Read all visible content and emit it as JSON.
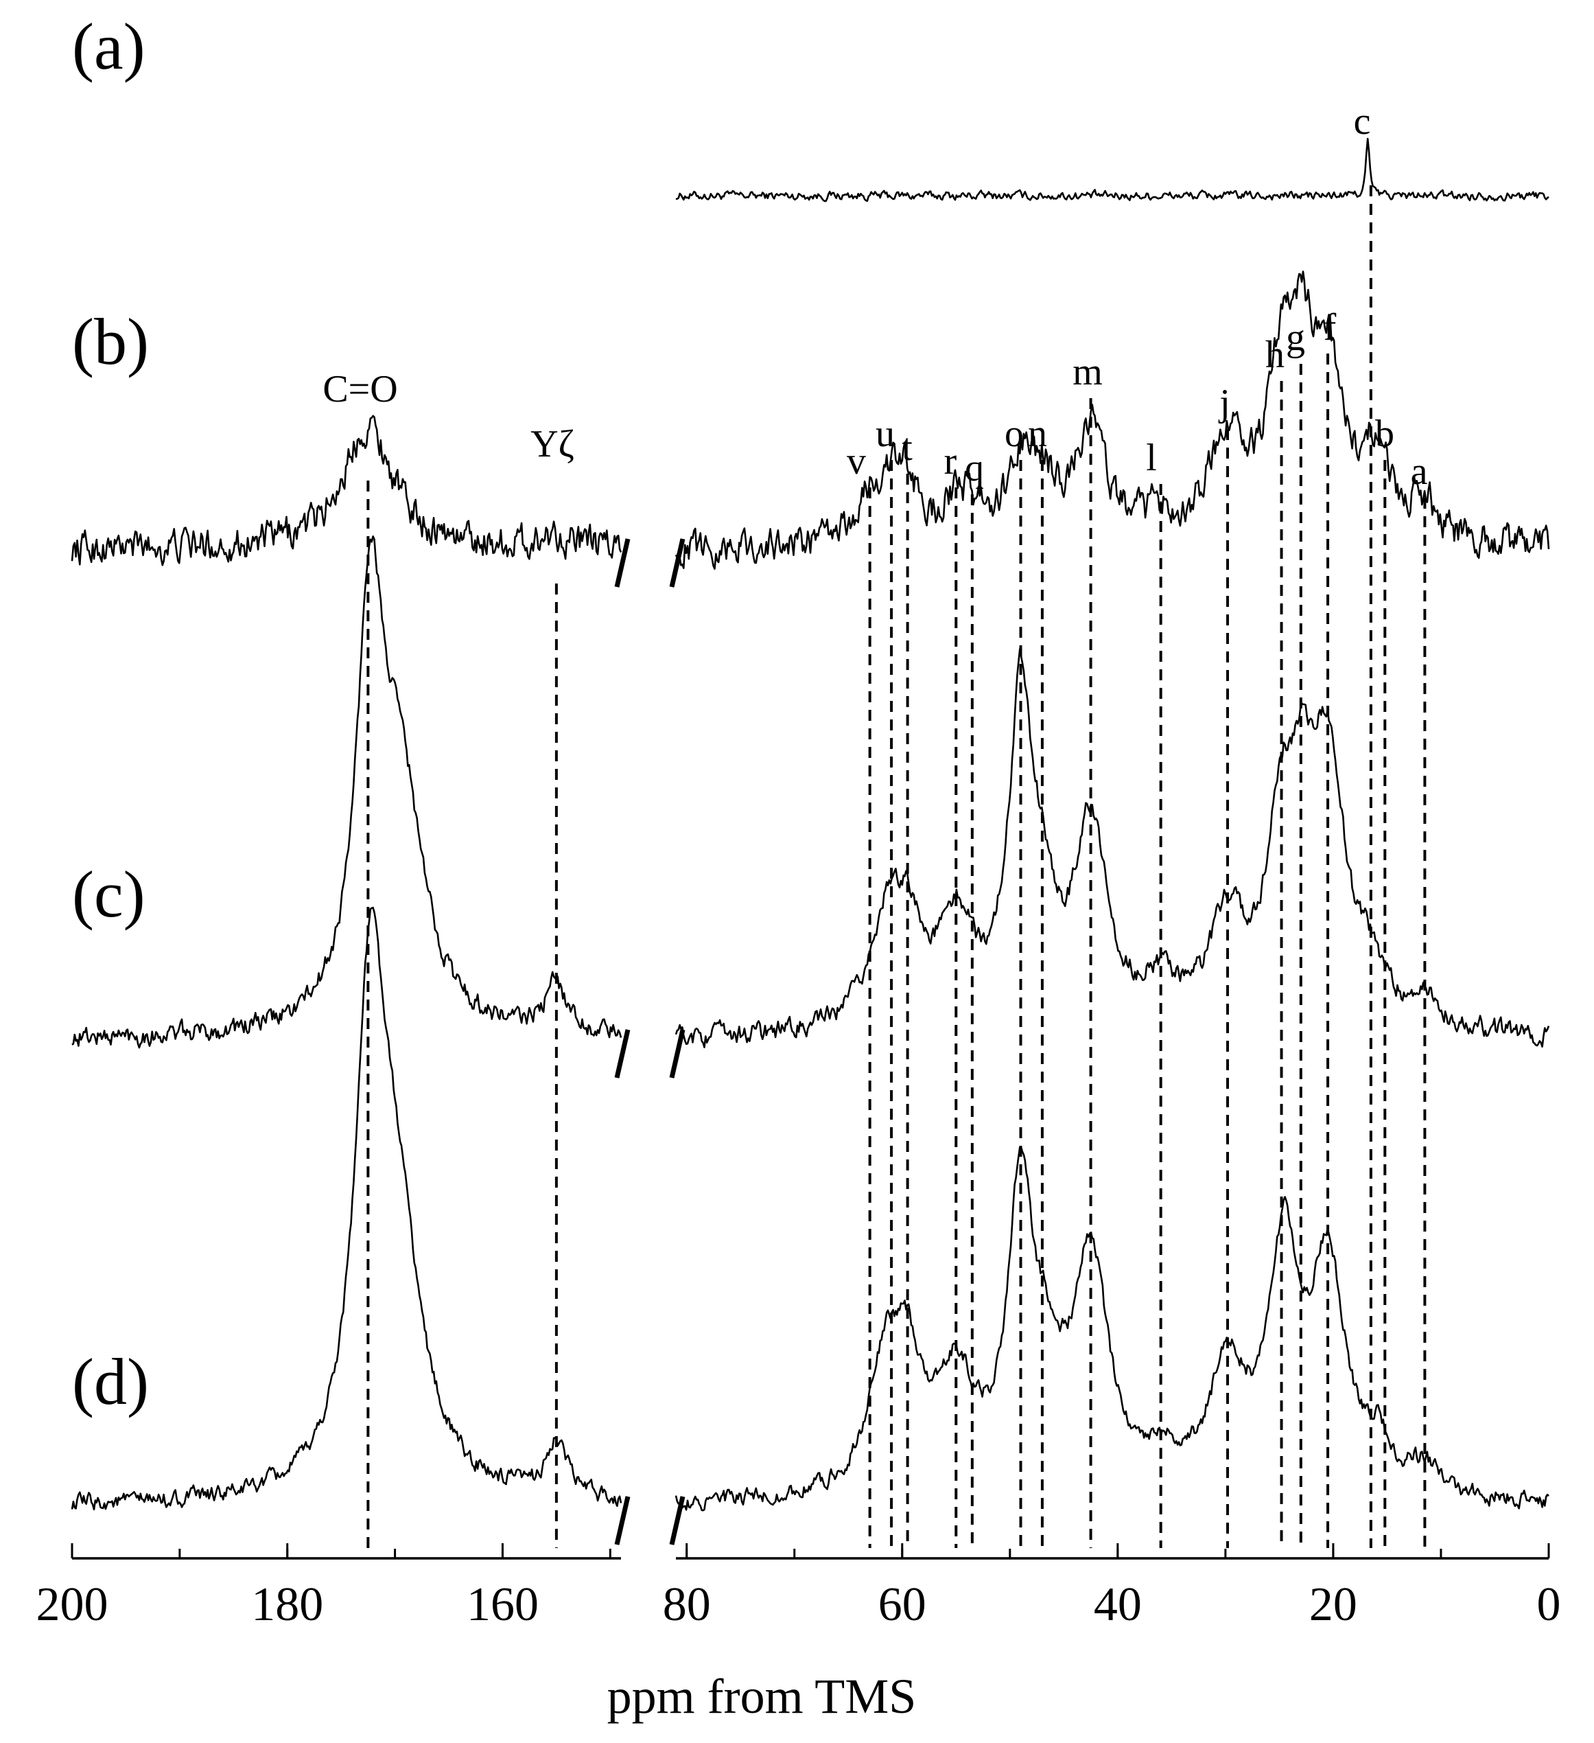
{
  "chart_data": {
    "type": "line",
    "title": "",
    "xlabel": "ppm from TMS",
    "ylabel": "",
    "x_reversed": true,
    "broken_axis": {
      "left_segment": [
        200,
        149
      ],
      "right_segment": [
        81,
        0
      ]
    },
    "xticks_left": [
      {
        "value": 200,
        "label": "200"
      },
      {
        "value": 180,
        "label": "180"
      },
      {
        "value": 160,
        "label": "160"
      }
    ],
    "xticks_right": [
      {
        "value": 80,
        "label": "80"
      },
      {
        "value": 60,
        "label": "60"
      },
      {
        "value": 40,
        "label": "40"
      },
      {
        "value": 20,
        "label": "20"
      },
      {
        "value": 0,
        "label": "0"
      }
    ],
    "grid": false,
    "legend": "none",
    "series": [
      {
        "label": "(a)",
        "range": [
          81,
          0
        ],
        "noise": 0.02,
        "peaks": [
          {
            "ppm": 16.8,
            "h": 0.35,
            "w": 0.2
          }
        ]
      },
      {
        "label": "(b)",
        "range": [
          200,
          0
        ],
        "noise": 0.055,
        "peaks": [
          {
            "ppm": 172.5,
            "h": 0.55,
            "w": 2.8
          },
          {
            "ppm": 155,
            "h": 0.06,
            "w": 1.5
          },
          {
            "ppm": 63,
            "h": 0.15,
            "w": 1.6
          },
          {
            "ppm": 61,
            "h": 0.22,
            "w": 1.6
          },
          {
            "ppm": 59.5,
            "h": 0.18,
            "w": 1.4
          },
          {
            "ppm": 55,
            "h": 0.14,
            "w": 1.6
          },
          {
            "ppm": 53.5,
            "h": 0.1,
            "w": 1.4
          },
          {
            "ppm": 49,
            "h": 0.3,
            "w": 1.5
          },
          {
            "ppm": 47,
            "h": 0.22,
            "w": 1.5
          },
          {
            "ppm": 42.5,
            "h": 0.5,
            "w": 1.8
          },
          {
            "ppm": 36,
            "h": 0.1,
            "w": 1.5
          },
          {
            "ppm": 29.8,
            "h": 0.45,
            "w": 2.0
          },
          {
            "ppm": 24.8,
            "h": 0.6,
            "w": 1.6
          },
          {
            "ppm": 23,
            "h": 0.62,
            "w": 1.4
          },
          {
            "ppm": 20.5,
            "h": 0.72,
            "w": 1.8
          },
          {
            "ppm": 16.5,
            "h": 0.22,
            "w": 1.2
          },
          {
            "ppm": 15.2,
            "h": 0.2,
            "w": 1.2
          },
          {
            "ppm": 11.5,
            "h": 0.15,
            "w": 1.6
          }
        ]
      },
      {
        "label": "(c)",
        "range": [
          200,
          0
        ],
        "noise": 0.03,
        "peaks": [
          {
            "ppm": 172.3,
            "h": 1.6,
            "w": 1.5
          },
          {
            "ppm": 169.5,
            "h": 0.95,
            "w": 2.6
          },
          {
            "ppm": 155,
            "h": 0.2,
            "w": 1.2
          },
          {
            "ppm": 61.5,
            "h": 0.4,
            "w": 2.0
          },
          {
            "ppm": 59.5,
            "h": 0.35,
            "w": 1.5
          },
          {
            "ppm": 55,
            "h": 0.42,
            "w": 2.0
          },
          {
            "ppm": 49,
            "h": 1.3,
            "w": 1.3
          },
          {
            "ppm": 47,
            "h": 0.35,
            "w": 1.5
          },
          {
            "ppm": 42.5,
            "h": 0.82,
            "w": 1.8
          },
          {
            "ppm": 36,
            "h": 0.15,
            "w": 2.0
          },
          {
            "ppm": 29.8,
            "h": 0.42,
            "w": 2.0
          },
          {
            "ppm": 24.8,
            "h": 0.75,
            "w": 1.6
          },
          {
            "ppm": 22.8,
            "h": 0.55,
            "w": 1.3
          },
          {
            "ppm": 20.5,
            "h": 1.05,
            "w": 1.9
          },
          {
            "ppm": 16.5,
            "h": 0.18,
            "w": 1.4
          },
          {
            "ppm": 11.5,
            "h": 0.12,
            "w": 1.8
          }
        ]
      },
      {
        "label": "(d)",
        "range": [
          200,
          0
        ],
        "noise": 0.025,
        "peaks": [
          {
            "ppm": 172.3,
            "h": 1.85,
            "w": 1.7
          },
          {
            "ppm": 169.8,
            "h": 1.0,
            "w": 2.7
          },
          {
            "ppm": 155,
            "h": 0.22,
            "w": 1.3
          },
          {
            "ppm": 61.5,
            "h": 0.5,
            "w": 2.0
          },
          {
            "ppm": 59.5,
            "h": 0.42,
            "w": 1.6
          },
          {
            "ppm": 55,
            "h": 0.45,
            "w": 2.1
          },
          {
            "ppm": 49,
            "h": 1.2,
            "w": 1.4
          },
          {
            "ppm": 46.5,
            "h": 0.35,
            "w": 1.7
          },
          {
            "ppm": 42.5,
            "h": 0.95,
            "w": 1.9
          },
          {
            "ppm": 36,
            "h": 0.12,
            "w": 2.2
          },
          {
            "ppm": 29.8,
            "h": 0.5,
            "w": 2.0
          },
          {
            "ppm": 24.6,
            "h": 0.95,
            "w": 1.7
          },
          {
            "ppm": 20.5,
            "h": 0.92,
            "w": 1.9
          },
          {
            "ppm": 16,
            "h": 0.18,
            "w": 1.4
          },
          {
            "ppm": 11.5,
            "h": 0.12,
            "w": 1.8
          }
        ]
      }
    ],
    "peak_assignments": [
      {
        "label": "C=O",
        "ppm": 172.5
      },
      {
        "label": "Yζ",
        "ppm": 155
      },
      {
        "label": "v",
        "ppm": 63
      },
      {
        "label": "u",
        "ppm": 61
      },
      {
        "label": "t",
        "ppm": 59.5
      },
      {
        "label": "r",
        "ppm": 55
      },
      {
        "label": "q",
        "ppm": 53.5
      },
      {
        "label": "o",
        "ppm": 49
      },
      {
        "label": "n",
        "ppm": 47
      },
      {
        "label": "m",
        "ppm": 42.5
      },
      {
        "label": "l",
        "ppm": 36
      },
      {
        "label": "j",
        "ppm": 29.8
      },
      {
        "label": "h",
        "ppm": 24.8
      },
      {
        "label": "g",
        "ppm": 23
      },
      {
        "label": "f",
        "ppm": 20.5
      },
      {
        "label": "c",
        "ppm": 16.5
      },
      {
        "label": "b",
        "ppm": 15.2
      },
      {
        "label": "a",
        "ppm": 11.5
      }
    ]
  }
}
